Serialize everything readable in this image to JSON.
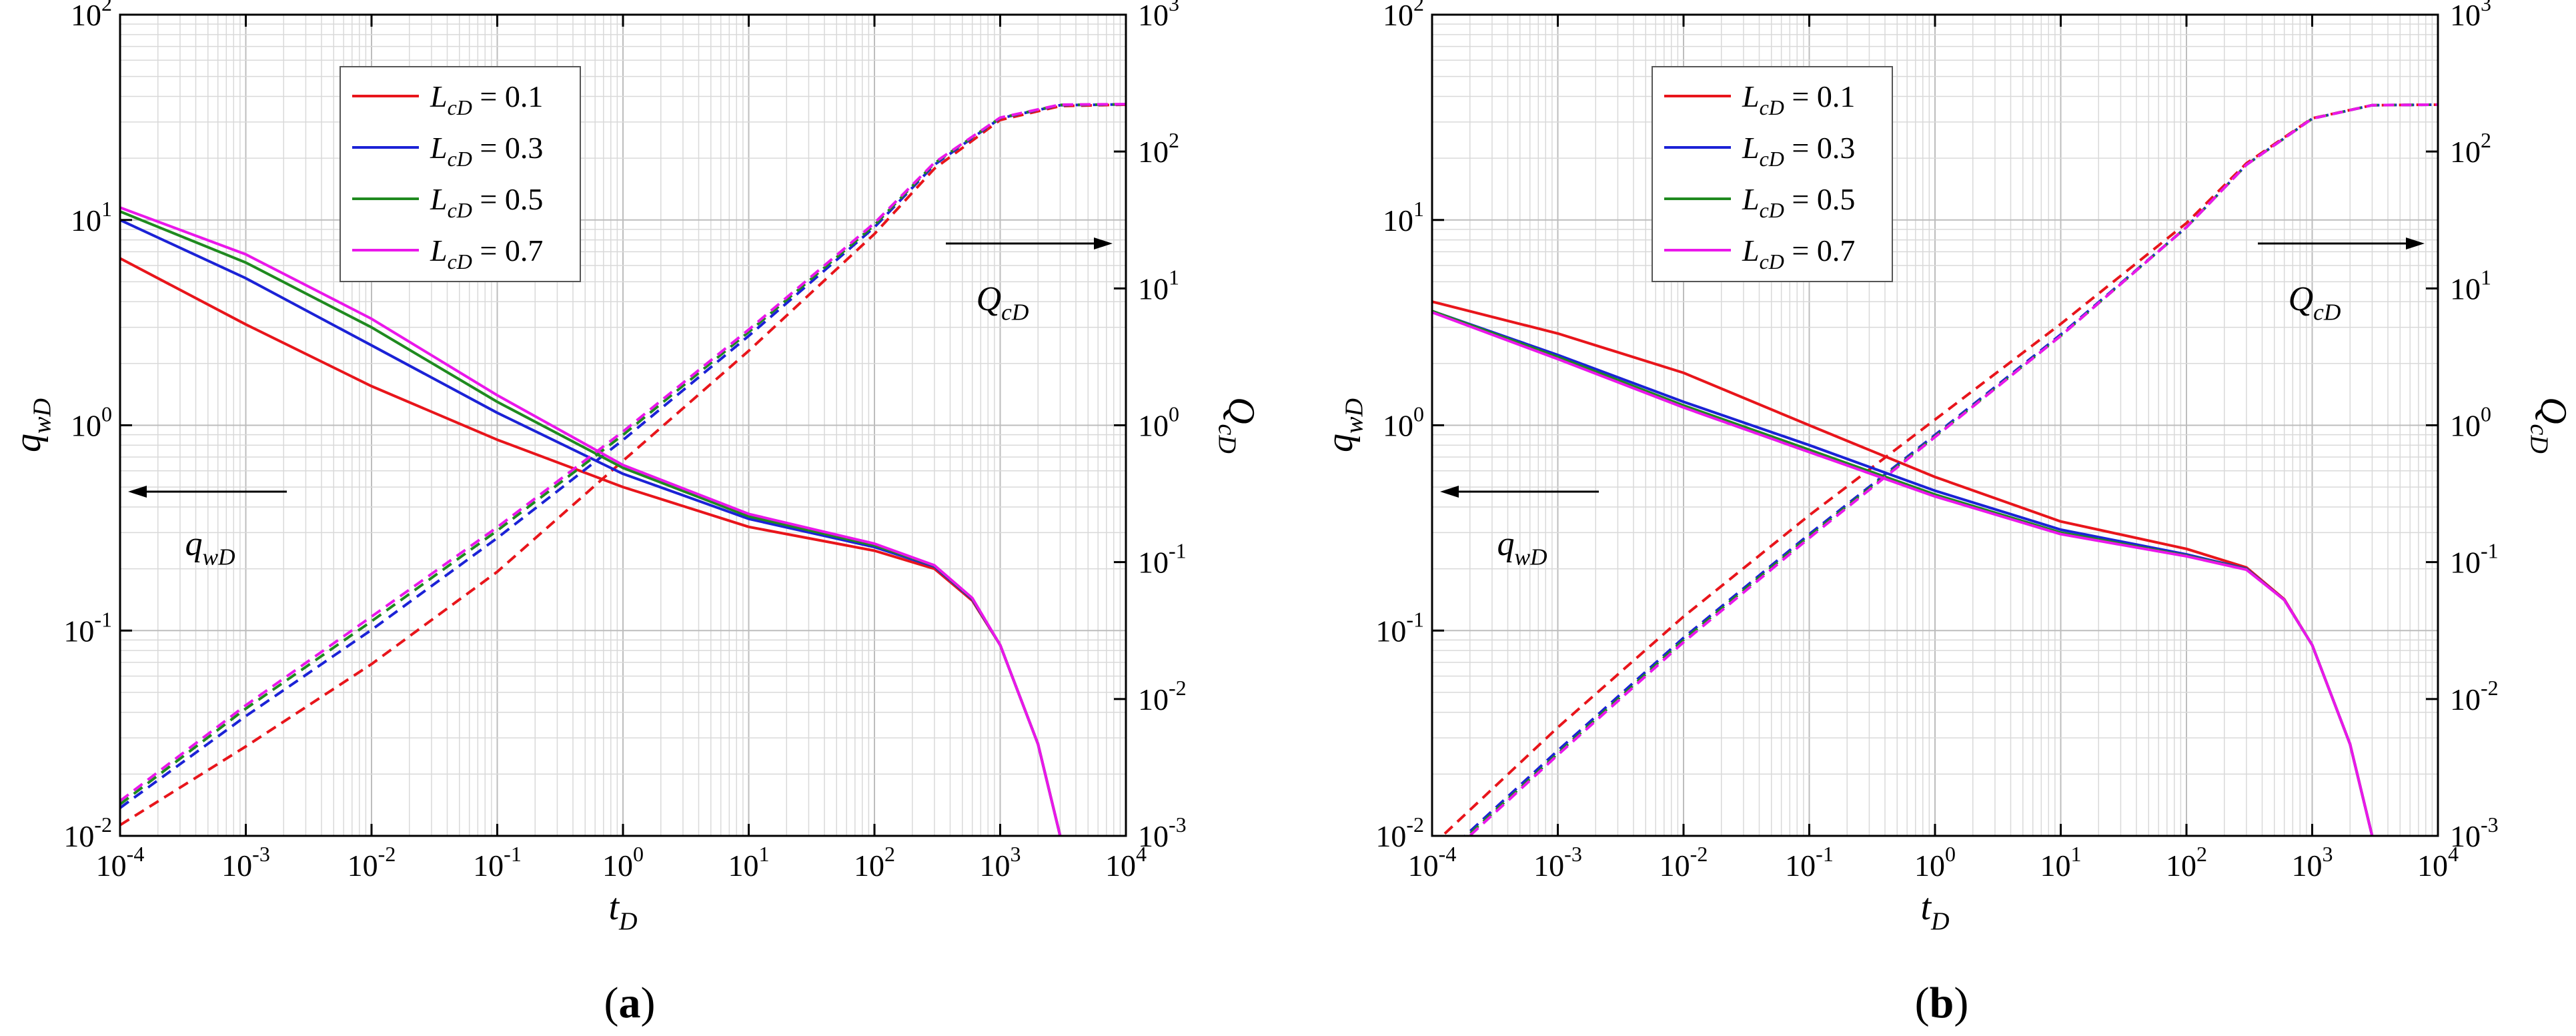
{
  "chart_data": [
    {
      "panel": "(a)",
      "panel_letter": "a",
      "type": "line",
      "xscale": "log",
      "yscale": "log",
      "y2scale": "log",
      "xlim": [
        0.0001,
        10000
      ],
      "ylim": [
        0.01,
        100
      ],
      "y2lim": [
        0.001,
        1000
      ],
      "grid": true,
      "xlabel": {
        "main": "t",
        "sub": "D"
      },
      "ylabel": {
        "main": "q",
        "sub": "wD"
      },
      "y2label": {
        "main": "Q",
        "sub": "cD"
      },
      "legend_position": "top-left",
      "annotations": [
        {
          "main": "q",
          "sub": "wD",
          "arrow": "left"
        },
        {
          "main": "Q",
          "sub": "cD",
          "arrow": "right"
        }
      ],
      "series": [
        {
          "name": "L_cD = 0.1",
          "label_main": "L",
          "label_sub": "cD",
          "label_value": " = 0.1",
          "color": "#e8151b",
          "q_wD": [
            [
              0.0001,
              6.5
            ],
            [
              0.001,
              3.1
            ],
            [
              0.01,
              1.55
            ],
            [
              0.1,
              0.85
            ],
            [
              1,
              0.5
            ],
            [
              10,
              0.32
            ],
            [
              100,
              0.245
            ],
            [
              300,
              0.2
            ],
            [
              600,
              0.14
            ],
            [
              1000,
              0.085
            ],
            [
              2000,
              0.028
            ],
            [
              3000,
              0.01
            ]
          ],
          "Q_cD": [
            [
              0.0001,
              0.0012
            ],
            [
              0.001,
              0.0045
            ],
            [
              0.01,
              0.018
            ],
            [
              0.1,
              0.085
            ],
            [
              1,
              0.55
            ],
            [
              10,
              3.5
            ],
            [
              100,
              25
            ],
            [
              300,
              75
            ],
            [
              1000,
              170
            ],
            [
              3000,
              215
            ],
            [
              10000,
              220
            ]
          ]
        },
        {
          "name": "L_cD = 0.3",
          "label_main": "L",
          "label_sub": "cD",
          "label_value": " = 0.3",
          "color": "#1b22d6",
          "q_wD": [
            [
              0.0001,
              10
            ],
            [
              0.001,
              5.2
            ],
            [
              0.01,
              2.45
            ],
            [
              0.1,
              1.15
            ],
            [
              1,
              0.58
            ],
            [
              10,
              0.35
            ],
            [
              100,
              0.255
            ],
            [
              300,
              0.205
            ],
            [
              600,
              0.142
            ],
            [
              1000,
              0.085
            ],
            [
              2000,
              0.028
            ],
            [
              3000,
              0.01
            ]
          ],
          "Q_cD": [
            [
              0.0001,
              0.0016
            ],
            [
              0.001,
              0.0075
            ],
            [
              0.01,
              0.032
            ],
            [
              0.1,
              0.15
            ],
            [
              1,
              0.78
            ],
            [
              10,
              4.5
            ],
            [
              100,
              28
            ],
            [
              300,
              80
            ],
            [
              1000,
              175
            ],
            [
              3000,
              218
            ],
            [
              10000,
              221
            ]
          ]
        },
        {
          "name": "L_cD = 0.5",
          "label_main": "L",
          "label_sub": "cD",
          "label_value": " = 0.5",
          "color": "#1f8a1f",
          "q_wD": [
            [
              0.0001,
              11
            ],
            [
              0.001,
              6.2
            ],
            [
              0.01,
              3.0
            ],
            [
              0.1,
              1.3
            ],
            [
              1,
              0.62
            ],
            [
              10,
              0.36
            ],
            [
              100,
              0.26
            ],
            [
              300,
              0.207
            ],
            [
              600,
              0.143
            ],
            [
              1000,
              0.085
            ],
            [
              2000,
              0.028
            ],
            [
              3000,
              0.01
            ]
          ],
          "Q_cD": [
            [
              0.0001,
              0.0017
            ],
            [
              0.001,
              0.0085
            ],
            [
              0.01,
              0.037
            ],
            [
              0.1,
              0.17
            ],
            [
              1,
              0.85
            ],
            [
              10,
              4.8
            ],
            [
              100,
              29
            ],
            [
              300,
              82
            ],
            [
              1000,
              176
            ],
            [
              3000,
              219
            ],
            [
              10000,
              221
            ]
          ]
        },
        {
          "name": "L_cD = 0.7",
          "label_main": "L",
          "label_sub": "cD",
          "label_value": " = 0.7",
          "color": "#ea17ea",
          "q_wD": [
            [
              0.0001,
              11.5
            ],
            [
              0.001,
              6.8
            ],
            [
              0.01,
              3.3
            ],
            [
              0.1,
              1.4
            ],
            [
              1,
              0.64
            ],
            [
              10,
              0.37
            ],
            [
              100,
              0.265
            ],
            [
              300,
              0.208
            ],
            [
              600,
              0.144
            ],
            [
              1000,
              0.085
            ],
            [
              2000,
              0.028
            ],
            [
              3000,
              0.01
            ]
          ],
          "Q_cD": [
            [
              0.0001,
              0.0018
            ],
            [
              0.001,
              0.009
            ],
            [
              0.01,
              0.04
            ],
            [
              0.1,
              0.18
            ],
            [
              1,
              0.9
            ],
            [
              10,
              5
            ],
            [
              100,
              30
            ],
            [
              300,
              83
            ],
            [
              1000,
              177
            ],
            [
              3000,
              220
            ],
            [
              10000,
              222
            ]
          ]
        }
      ]
    },
    {
      "panel": "(b)",
      "panel_letter": "b",
      "type": "line",
      "xscale": "log",
      "yscale": "log",
      "y2scale": "log",
      "xlim": [
        0.0001,
        10000
      ],
      "ylim": [
        0.01,
        100
      ],
      "y2lim": [
        0.001,
        1000
      ],
      "grid": true,
      "xlabel": {
        "main": "t",
        "sub": "D"
      },
      "ylabel": {
        "main": "q",
        "sub": "wD"
      },
      "y2label": {
        "main": "Q",
        "sub": "cD"
      },
      "legend_position": "top-left",
      "annotations": [
        {
          "main": "q",
          "sub": "wD",
          "arrow": "left"
        },
        {
          "main": "Q",
          "sub": "cD",
          "arrow": "right"
        }
      ],
      "series": [
        {
          "name": "L_cD = 0.1",
          "label_main": "L",
          "label_sub": "cD",
          "label_value": " = 0.1",
          "color": "#e8151b",
          "q_wD": [
            [
              0.0001,
              4.0
            ],
            [
              0.001,
              2.8
            ],
            [
              0.01,
              1.8
            ],
            [
              0.1,
              1.0
            ],
            [
              1,
              0.56
            ],
            [
              10,
              0.34
            ],
            [
              100,
              0.25
            ],
            [
              300,
              0.203
            ],
            [
              600,
              0.142
            ],
            [
              1000,
              0.085
            ],
            [
              2000,
              0.028
            ],
            [
              3000,
              0.01
            ]
          ],
          "Q_cD": [
            [
              0.0001,
              0.00085
            ],
            [
              0.001,
              0.0062
            ],
            [
              0.01,
              0.04
            ],
            [
              0.1,
              0.22
            ],
            [
              1,
              1.1
            ],
            [
              10,
              5.5
            ],
            [
              100,
              30
            ],
            [
              300,
              82
            ],
            [
              1000,
              175
            ],
            [
              3000,
              218
            ],
            [
              10000,
              220
            ]
          ]
        },
        {
          "name": "L_cD = 0.3",
          "label_main": "L",
          "label_sub": "cD",
          "label_value": " = 0.3",
          "color": "#1b22d6",
          "q_wD": [
            [
              0.0001,
              3.6
            ],
            [
              0.001,
              2.2
            ],
            [
              0.01,
              1.3
            ],
            [
              0.1,
              0.8
            ],
            [
              1,
              0.48
            ],
            [
              10,
              0.31
            ],
            [
              100,
              0.235
            ],
            [
              300,
              0.2
            ],
            [
              600,
              0.141
            ],
            [
              1000,
              0.085
            ],
            [
              2000,
              0.028
            ],
            [
              3000,
              0.01
            ]
          ],
          "Q_cD": [
            [
              0.0001,
              0.0006
            ],
            [
              0.001,
              0.0042
            ],
            [
              0.01,
              0.028
            ],
            [
              0.1,
              0.16
            ],
            [
              1,
              0.85
            ],
            [
              10,
              4.6
            ],
            [
              100,
              28
            ],
            [
              300,
              80
            ],
            [
              1000,
              174
            ],
            [
              3000,
              218
            ],
            [
              10000,
              220
            ]
          ]
        },
        {
          "name": "L_cD = 0.5",
          "label_main": "L",
          "label_sub": "cD",
          "label_value": " = 0.5",
          "color": "#1f8a1f",
          "q_wD": [
            [
              0.0001,
              3.6
            ],
            [
              0.001,
              2.15
            ],
            [
              0.01,
              1.25
            ],
            [
              0.1,
              0.76
            ],
            [
              1,
              0.46
            ],
            [
              10,
              0.3
            ],
            [
              100,
              0.232
            ],
            [
              300,
              0.199
            ],
            [
              600,
              0.141
            ],
            [
              1000,
              0.085
            ],
            [
              2000,
              0.028
            ],
            [
              3000,
              0.01
            ]
          ],
          "Q_cD": [
            [
              0.0001,
              0.00058
            ],
            [
              0.001,
              0.004
            ],
            [
              0.01,
              0.027
            ],
            [
              0.1,
              0.155
            ],
            [
              1,
              0.83
            ],
            [
              10,
              4.5
            ],
            [
              100,
              28
            ],
            [
              300,
              80
            ],
            [
              1000,
              174
            ],
            [
              3000,
              218
            ],
            [
              10000,
              220
            ]
          ]
        },
        {
          "name": "L_cD = 0.7",
          "label_main": "L",
          "label_sub": "cD",
          "label_value": " = 0.7",
          "color": "#ea17ea",
          "q_wD": [
            [
              0.0001,
              3.55
            ],
            [
              0.001,
              2.1
            ],
            [
              0.01,
              1.22
            ],
            [
              0.1,
              0.74
            ],
            [
              1,
              0.45
            ],
            [
              10,
              0.295
            ],
            [
              100,
              0.23
            ],
            [
              300,
              0.198
            ],
            [
              600,
              0.141
            ],
            [
              1000,
              0.085
            ],
            [
              2000,
              0.028
            ],
            [
              3000,
              0.01
            ]
          ],
          "Q_cD": [
            [
              0.0001,
              0.00056
            ],
            [
              0.001,
              0.0039
            ],
            [
              0.01,
              0.026
            ],
            [
              0.1,
              0.15
            ],
            [
              1,
              0.82
            ],
            [
              10,
              4.5
            ],
            [
              100,
              28
            ],
            [
              300,
              80
            ],
            [
              1000,
              174
            ],
            [
              3000,
              218
            ],
            [
              10000,
              220
            ]
          ]
        }
      ]
    }
  ]
}
